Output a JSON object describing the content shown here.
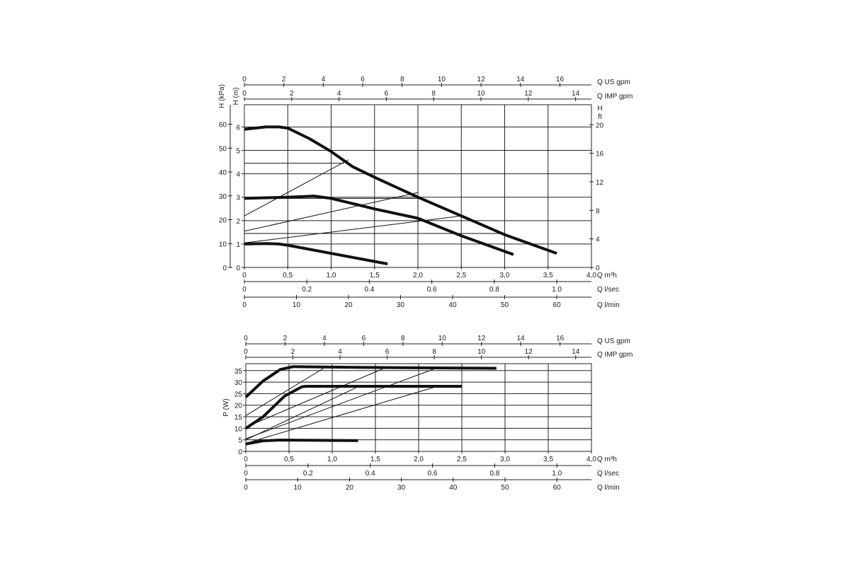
{
  "chart_data": [
    {
      "type": "line",
      "title": "",
      "xlabel": "Q m³h",
      "xlim": [
        0,
        4
      ],
      "ylabel_left_outer": "H (kPa)",
      "ylabel_left_inner": "H (m)",
      "ylabel_right": "H ft",
      "ylim_m": [
        0,
        7
      ],
      "grid": true,
      "secondary_x_axes": [
        {
          "label": "Q US gpm",
          "ticks": [
            "0",
            "2",
            "4",
            "6",
            "8",
            "10",
            "12",
            "14",
            "16"
          ],
          "values": [
            0,
            2,
            4,
            6,
            8,
            10,
            12,
            14,
            16
          ]
        },
        {
          "label": "Q IMP gpm",
          "ticks": [
            "0",
            "2",
            "4",
            "6",
            "8",
            "10",
            "12",
            "14"
          ],
          "values": [
            0,
            2,
            4,
            6,
            8,
            10,
            12,
            14
          ]
        }
      ],
      "bottom_x_axes": [
        {
          "label": "Q m³h",
          "ticks": [
            "0",
            "0,5",
            "1,0",
            "1,5",
            "2,0",
            "2,5",
            "3,0",
            "3,5",
            "4,0"
          ],
          "values": [
            0,
            0.5,
            1.0,
            1.5,
            2.0,
            2.5,
            3.0,
            3.5,
            4.0
          ]
        },
        {
          "label": "Q l/sec",
          "ticks": [
            "0",
            "0.2",
            "0.4",
            "0.6",
            "0.8",
            "1.0"
          ],
          "values": [
            0,
            0.2,
            0.4,
            0.6,
            0.8,
            1.0
          ]
        },
        {
          "label": "Q l/min",
          "ticks": [
            "0",
            "10",
            "20",
            "30",
            "40",
            "50",
            "60"
          ],
          "values": [
            0,
            10,
            20,
            30,
            40,
            50,
            60
          ]
        }
      ],
      "y_ticks_m": [
        "0",
        "1",
        "2",
        "3",
        "4",
        "5",
        "6"
      ],
      "y_ticks_kpa": [
        "0",
        "10",
        "20",
        "30",
        "40",
        "50",
        "60"
      ],
      "y_ticks_ft": [
        "0",
        "4",
        "8",
        "12",
        "16",
        "20"
      ],
      "series": [
        {
          "weight": "bold",
          "x": [
            0,
            0.25,
            0.4,
            0.5,
            0.75,
            1.0,
            1.25,
            1.5,
            2.0,
            2.5,
            3.0,
            3.6
          ],
          "y": [
            5.9,
            6.0,
            6.0,
            5.95,
            5.5,
            4.95,
            4.3,
            3.85,
            3.0,
            2.2,
            1.4,
            0.6
          ]
        },
        {
          "weight": "bold",
          "x": [
            0,
            0.5,
            0.8,
            1.0,
            1.5,
            2.0,
            2.5,
            3.1
          ],
          "y": [
            2.95,
            3.0,
            3.05,
            2.95,
            2.5,
            2.1,
            1.35,
            0.55
          ]
        },
        {
          "weight": "bold",
          "x": [
            0,
            0.25,
            0.4,
            0.5,
            1.0,
            1.65
          ],
          "y": [
            1.0,
            1.02,
            1.0,
            0.95,
            0.6,
            0.15
          ]
        },
        {
          "weight": "thin",
          "x": [
            0,
            1.15
          ],
          "y": [
            4.45,
            4.45
          ]
        },
        {
          "weight": "thin",
          "x": [
            0,
            2.0
          ],
          "y": [
            2.95,
            2.95
          ]
        },
        {
          "weight": "thin",
          "x": [
            0,
            3.0
          ],
          "y": [
            1.45,
            1.45
          ]
        },
        {
          "weight": "thin",
          "x": [
            0,
            1.2
          ],
          "y": [
            2.2,
            4.6
          ]
        },
        {
          "weight": "thin",
          "x": [
            0,
            2.0
          ],
          "y": [
            1.55,
            3.2
          ]
        },
        {
          "weight": "thin",
          "x": [
            0,
            2.5
          ],
          "y": [
            1.05,
            2.2
          ]
        }
      ]
    },
    {
      "type": "line",
      "title": "",
      "xlabel": "Q m³h",
      "xlim": [
        0,
        4
      ],
      "ylabel": "P (W)",
      "ylim": [
        0,
        38
      ],
      "grid": true,
      "secondary_x_axes": [
        {
          "label": "Q US gpm",
          "ticks": [
            "0",
            "2",
            "4",
            "6",
            "8",
            "10",
            "12",
            "14",
            "16"
          ],
          "values": [
            0,
            2,
            4,
            6,
            8,
            10,
            12,
            14,
            16
          ]
        },
        {
          "label": "Q IMP gpm",
          "ticks": [
            "0",
            "2",
            "4",
            "6",
            "8",
            "10",
            "12",
            "14"
          ],
          "values": [
            0,
            2,
            4,
            6,
            8,
            10,
            12,
            14
          ]
        }
      ],
      "bottom_x_axes": [
        {
          "label": "Q m³h",
          "ticks": [
            "0",
            "0,5",
            "1,0",
            "1,5",
            "2,0",
            "2,5",
            "3,0",
            "3,5",
            "4,0"
          ],
          "values": [
            0,
            0.5,
            1.0,
            1.5,
            2.0,
            2.5,
            3.0,
            3.5,
            4.0
          ]
        },
        {
          "label": "Q l/sec",
          "ticks": [
            "0",
            "0.2",
            "0.4",
            "0.6",
            "0.8",
            "1.0"
          ],
          "values": [
            0,
            0.2,
            0.4,
            0.6,
            0.8,
            1.0
          ]
        },
        {
          "label": "Q l/min",
          "ticks": [
            "0",
            "10",
            "20",
            "30",
            "40",
            "50",
            "60"
          ],
          "values": [
            0,
            10,
            20,
            30,
            40,
            50,
            60
          ]
        }
      ],
      "y_ticks": [
        "0",
        "5",
        "10",
        "15",
        "20",
        "25",
        "30",
        "35"
      ],
      "series": [
        {
          "weight": "bold",
          "x": [
            0,
            0.2,
            0.4,
            0.55,
            1.0,
            2.0,
            2.9
          ],
          "y": [
            23.5,
            30.5,
            35.5,
            36.7,
            36.5,
            36.2,
            36.0
          ]
        },
        {
          "weight": "bold",
          "x": [
            0,
            0.2,
            0.45,
            0.65,
            0.7,
            1.5,
            2.5
          ],
          "y": [
            10,
            15,
            24,
            28,
            28.2,
            28.2,
            28.2
          ]
        },
        {
          "weight": "bold",
          "x": [
            0,
            0.2,
            0.4,
            1.3
          ],
          "y": [
            3.2,
            4.6,
            4.9,
            4.7
          ]
        },
        {
          "weight": "thin",
          "x": [
            0,
            0.9
          ],
          "y": [
            15.5,
            36.0
          ]
        },
        {
          "weight": "thin",
          "x": [
            0,
            1.6
          ],
          "y": [
            10.5,
            36.0
          ]
        },
        {
          "weight": "thin",
          "x": [
            0,
            2.2
          ],
          "y": [
            5.5,
            36.0
          ]
        },
        {
          "weight": "thin",
          "x": [
            0,
            1.3
          ],
          "y": [
            5.0,
            28.0
          ]
        },
        {
          "weight": "thin",
          "x": [
            0,
            2.2
          ],
          "y": [
            3.5,
            28.0
          ]
        }
      ]
    }
  ]
}
